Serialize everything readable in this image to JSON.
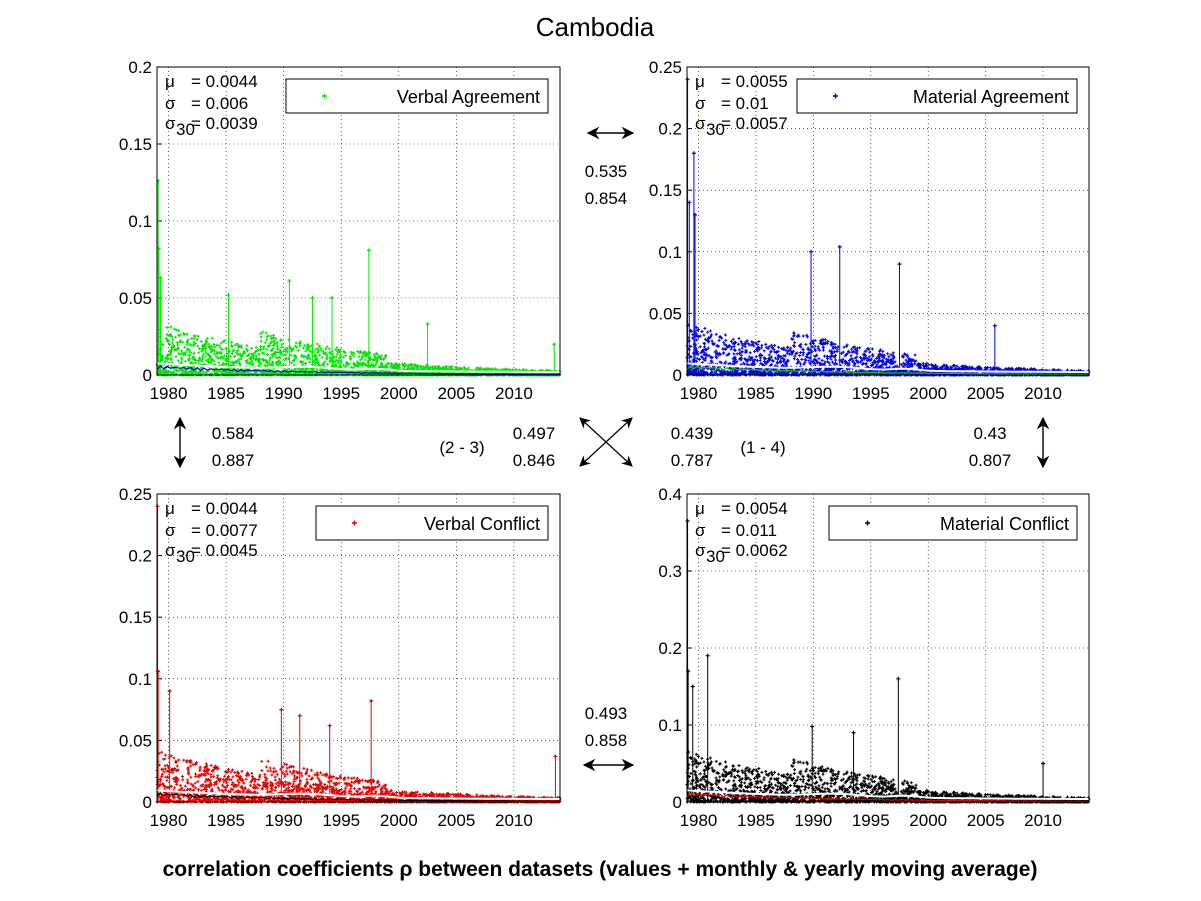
{
  "title": "Cambodia",
  "footer": "correlation coefficients ρ between datasets (values + monthly & yearly moving average)",
  "chart_data": [
    {
      "type": "scatter",
      "series": [
        {
          "name": "Verbal Agreement",
          "color": "#00e600",
          "peaks": [
            [
              1979.1,
              0.126
            ],
            [
              1979.15,
              0.082
            ],
            [
              1979.3,
              0.063
            ],
            [
              1985.2,
              0.052
            ],
            [
              1990.5,
              0.061
            ],
            [
              1997.4,
              0.081
            ],
            [
              1992.5,
              0.05
            ],
            [
              1994.2,
              0.05
            ],
            [
              2002.5,
              0.033
            ],
            [
              2013.5,
              0.02
            ]
          ]
        }
      ],
      "overlay_colors": {
        "monthly": "#0000cc",
        "yearly": "#ffffff"
      },
      "x_ticks": [
        "1980",
        "1985",
        "1990",
        "1995",
        "2000",
        "2005",
        "2010"
      ],
      "y_ticks": [
        "0",
        "0.05",
        "0.1",
        "0.15",
        "0.2"
      ],
      "xlim": [
        1979,
        2014
      ],
      "ylim": [
        0,
        0.2
      ],
      "stats": {
        "mu": "= 0.0044",
        "sigma": "= 0.006",
        "sigma30": "= 0.0039"
      },
      "grid": true,
      "legend_placement": "top-right"
    },
    {
      "type": "scatter",
      "series": [
        {
          "name": "Material Agreement",
          "color": "#0000e6",
          "peaks": [
            [
              1979.05,
              0.24
            ],
            [
              1979.6,
              0.18
            ],
            [
              1979.7,
              0.13
            ],
            [
              1979.2,
              0.14
            ],
            [
              1989.8,
              0.1
            ],
            [
              1992.3,
              0.104
            ],
            [
              1997.5,
              0.09
            ],
            [
              2005.8,
              0.04
            ]
          ]
        }
      ],
      "overlay_colors": {
        "monthly": "#00cc00",
        "yearly": "#ffffff"
      },
      "x_ticks": [
        "1980",
        "1985",
        "1990",
        "1995",
        "2000",
        "2005",
        "2010"
      ],
      "y_ticks": [
        "0",
        "0.05",
        "0.1",
        "0.15",
        "0.2",
        "0.25"
      ],
      "xlim": [
        1979,
        2014
      ],
      "ylim": [
        0,
        0.25
      ],
      "stats": {
        "mu": "= 0.0055",
        "sigma": "= 0.01",
        "sigma30": "= 0.0057"
      },
      "grid": true,
      "legend_placement": "top-right"
    },
    {
      "type": "scatter",
      "series": [
        {
          "name": "Verbal Conflict",
          "color": "#e60000",
          "peaks": [
            [
              1979.05,
              0.24
            ],
            [
              1979.1,
              0.106
            ],
            [
              1980.1,
              0.09
            ],
            [
              1989.8,
              0.075
            ],
            [
              1991.4,
              0.07
            ],
            [
              1997.6,
              0.082
            ],
            [
              1994.0,
              0.062
            ],
            [
              2013.6,
              0.037
            ]
          ]
        }
      ],
      "overlay_colors": {
        "monthly": "#000000",
        "yearly": "#ffffff"
      },
      "x_ticks": [
        "1980",
        "1985",
        "1990",
        "1995",
        "2000",
        "2005",
        "2010"
      ],
      "y_ticks": [
        "0",
        "0.05",
        "0.1",
        "0.15",
        "0.2",
        "0.25"
      ],
      "xlim": [
        1979,
        2014
      ],
      "ylim": [
        0,
        0.25
      ],
      "stats": {
        "mu": "= 0.0044",
        "sigma": "= 0.0077",
        "sigma30": "= 0.0045"
      },
      "grid": true,
      "legend_placement": "top-right"
    },
    {
      "type": "scatter",
      "series": [
        {
          "name": "Material Conflict",
          "color": "#000000",
          "peaks": [
            [
              1979.05,
              0.365
            ],
            [
              1979.1,
              0.17
            ],
            [
              1979.5,
              0.15
            ],
            [
              1980.8,
              0.19
            ],
            [
              1989.9,
              0.098
            ],
            [
              1993.5,
              0.09
            ],
            [
              1997.4,
              0.16
            ],
            [
              2010.0,
              0.05
            ]
          ]
        }
      ],
      "overlay_colors": {
        "monthly": "#e60000",
        "yearly": "#ffffff"
      },
      "x_ticks": [
        "1980",
        "1985",
        "1990",
        "1995",
        "2000",
        "2005",
        "2010"
      ],
      "y_ticks": [
        "0",
        "0.1",
        "0.2",
        "0.3",
        "0.4"
      ],
      "xlim": [
        1979,
        2014
      ],
      "ylim": [
        0,
        0.4
      ],
      "stats": {
        "mu": "= 0.0054",
        "sigma": "= 0.011",
        "sigma30": "= 0.0062"
      },
      "grid": true,
      "legend_placement": "top-right"
    }
  ],
  "correlations": {
    "top": {
      "v1": "0.535",
      "v2": "0.854"
    },
    "left": {
      "v1": "0.584",
      "v2": "0.887"
    },
    "right": {
      "v1": "0.43",
      "v2": "0.807"
    },
    "bottom": {
      "v1": "0.493",
      "v2": "0.858"
    },
    "diag_23": {
      "label": "(2 - 3)",
      "v1": "0.497",
      "v2": "0.846"
    },
    "diag_14": {
      "label": "(1 - 4)",
      "v1": "0.439",
      "v2": "0.787"
    }
  },
  "labels": {
    "mu": "μ",
    "sigma": "σ",
    "sigma_sub": "30"
  }
}
